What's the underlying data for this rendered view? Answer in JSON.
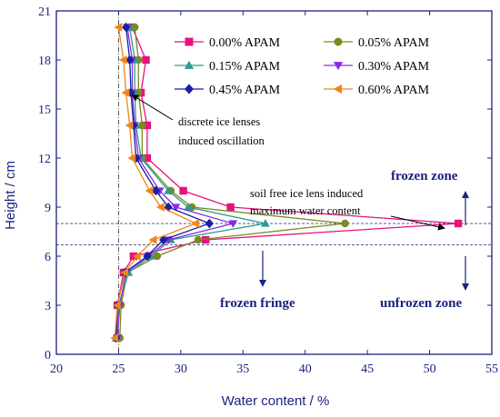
{
  "chart_data": {
    "type": "line",
    "title": "",
    "xlabel": "Water content / %",
    "ylabel": "Height / cm",
    "xlim": [
      20,
      55
    ],
    "ylim": [
      0,
      21
    ],
    "xticks": [
      20,
      25,
      30,
      35,
      40,
      45,
      50,
      55
    ],
    "yticks": [
      0,
      3,
      6,
      9,
      12,
      15,
      18,
      21
    ],
    "grid": false,
    "legend_position": "top-right",
    "reference_lines": {
      "vertical_x": 25,
      "horizontal_y": [
        8.0,
        6.7
      ]
    },
    "series": [
      {
        "name": "0.00% APAM",
        "color": "#e8117f",
        "marker": "square",
        "points": [
          [
            24.9,
            1
          ],
          [
            24.9,
            3
          ],
          [
            25.4,
            5
          ],
          [
            26.2,
            6
          ],
          [
            32.0,
            7
          ],
          [
            52.3,
            8
          ],
          [
            34.0,
            9
          ],
          [
            30.2,
            10
          ],
          [
            27.3,
            12
          ],
          [
            27.3,
            14
          ],
          [
            26.8,
            16
          ],
          [
            27.2,
            18
          ],
          [
            26.1,
            20
          ]
        ]
      },
      {
        "name": "0.05% APAM",
        "color": "#7a8a1e",
        "marker": "circle",
        "points": [
          [
            25.1,
            1
          ],
          [
            25.2,
            3
          ],
          [
            25.7,
            5
          ],
          [
            28.1,
            6
          ],
          [
            31.4,
            7
          ],
          [
            43.2,
            8
          ],
          [
            30.9,
            9
          ],
          [
            29.2,
            10
          ],
          [
            26.9,
            12
          ],
          [
            26.9,
            14
          ],
          [
            26.6,
            16
          ],
          [
            26.6,
            18
          ],
          [
            26.3,
            20
          ]
        ]
      },
      {
        "name": "0.15% APAM",
        "color": "#2a9d8f",
        "marker": "triangle-up",
        "points": [
          [
            24.8,
            1
          ],
          [
            25.0,
            3
          ],
          [
            25.8,
            5
          ],
          [
            27.6,
            6
          ],
          [
            29.2,
            7
          ],
          [
            36.8,
            8
          ],
          [
            30.6,
            9
          ],
          [
            29.0,
            10
          ],
          [
            26.8,
            12
          ],
          [
            26.4,
            14
          ],
          [
            26.3,
            16
          ],
          [
            26.3,
            18
          ],
          [
            25.9,
            20
          ]
        ]
      },
      {
        "name": "0.30% APAM",
        "color": "#8a2be2",
        "marker": "triangle-down",
        "points": [
          [
            24.9,
            1
          ],
          [
            25.1,
            3
          ],
          [
            25.6,
            5
          ],
          [
            27.4,
            6
          ],
          [
            29.0,
            7
          ],
          [
            34.2,
            8
          ],
          [
            29.6,
            9
          ],
          [
            28.3,
            10
          ],
          [
            26.6,
            12
          ],
          [
            26.3,
            14
          ],
          [
            26.1,
            16
          ],
          [
            26.1,
            18
          ],
          [
            25.7,
            20
          ]
        ]
      },
      {
        "name": "0.45% APAM",
        "color": "#1a1fa0",
        "marker": "diamond",
        "points": [
          [
            24.8,
            1
          ],
          [
            24.9,
            3
          ],
          [
            25.5,
            5
          ],
          [
            27.3,
            6
          ],
          [
            28.6,
            7
          ],
          [
            32.3,
            8
          ],
          [
            29.0,
            9
          ],
          [
            28.0,
            10
          ],
          [
            26.4,
            12
          ],
          [
            26.2,
            14
          ],
          [
            26.0,
            16
          ],
          [
            25.9,
            18
          ],
          [
            25.6,
            20
          ]
        ]
      },
      {
        "name": "0.60% APAM",
        "color": "#f08519",
        "marker": "triangle-left",
        "points": [
          [
            24.7,
            1
          ],
          [
            24.9,
            3
          ],
          [
            25.5,
            5
          ],
          [
            26.5,
            6
          ],
          [
            27.8,
            7
          ],
          [
            31.2,
            8
          ],
          [
            28.4,
            9
          ],
          [
            27.5,
            10
          ],
          [
            26.1,
            12
          ],
          [
            25.9,
            14
          ],
          [
            25.6,
            16
          ],
          [
            25.4,
            18
          ],
          [
            25.0,
            20
          ]
        ]
      }
    ],
    "annotations": {
      "ice_lens_1": "discrete ice lenses",
      "ice_lens_2": "induced oscillation",
      "max_water_1": "soil free ice lens induced",
      "max_water_2": "maximum water content",
      "frozen_zone": "frozen zone",
      "frozen_fringe": "frozen fringe",
      "unfrozen_zone": "unfrozen zone"
    }
  }
}
